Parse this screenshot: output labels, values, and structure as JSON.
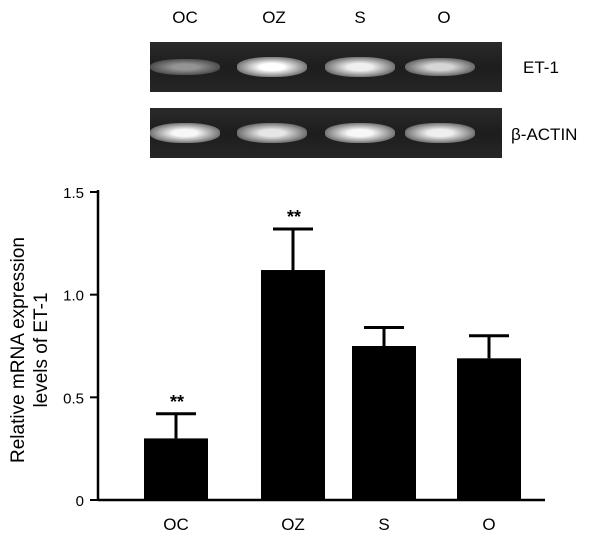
{
  "gel": {
    "lanes": [
      "OC",
      "OZ",
      "S",
      "O"
    ],
    "rows": [
      {
        "label": "ET-1",
        "intensity": [
          0.35,
          1.0,
          0.9,
          0.75
        ]
      },
      {
        "label": "β-ACTIN",
        "intensity": [
          0.95,
          0.85,
          0.95,
          0.9
        ]
      }
    ]
  },
  "chart_data": {
    "type": "bar",
    "categories": [
      "OC",
      "OZ",
      "S",
      "O"
    ],
    "values": [
      0.3,
      1.12,
      0.75,
      0.69
    ],
    "errors": [
      0.12,
      0.2,
      0.09,
      0.11
    ],
    "significance": [
      "**",
      "**",
      "",
      ""
    ],
    "title": "",
    "xlabel": "",
    "ylabel": "Relative mRNA expression levels of ET-1",
    "ylabel_lines": [
      "Relative mRNA expression",
      "levels of ET-1"
    ],
    "ylim": [
      0,
      1.5
    ],
    "yticks": [
      0,
      0.5,
      1.0,
      1.5
    ],
    "ytick_labels": [
      "0",
      "0.5",
      "1.0",
      "1.5"
    ],
    "grid": false,
    "bar_color": "#000000"
  }
}
